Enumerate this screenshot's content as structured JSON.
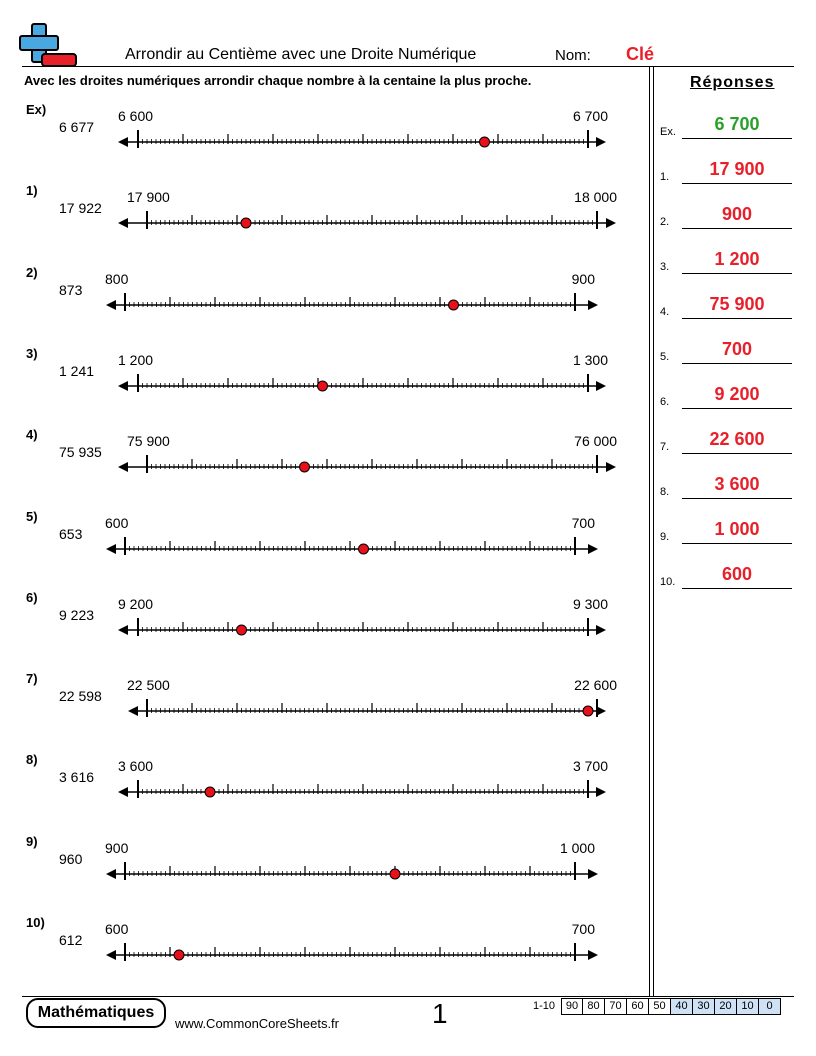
{
  "header": {
    "title": "Arrondir au Centième avec une Droite Numérique",
    "name_label": "Nom:",
    "name_value": "Clé",
    "instructions": "Avec les droites numériques arrondir chaque nombre à la centaine la plus proche."
  },
  "answers": {
    "title": "Réponses",
    "items": [
      {
        "label": "Ex.",
        "value": "6 700"
      },
      {
        "label": "1.",
        "value": "17 900"
      },
      {
        "label": "2.",
        "value": "900"
      },
      {
        "label": "3.",
        "value": "1 200"
      },
      {
        "label": "4.",
        "value": "75 900"
      },
      {
        "label": "5.",
        "value": "700"
      },
      {
        "label": "6.",
        "value": "9 200"
      },
      {
        "label": "7.",
        "value": "22 600"
      },
      {
        "label": "8.",
        "value": "3 600"
      },
      {
        "label": "9.",
        "value": "1 000"
      },
      {
        "label": "10.",
        "value": "600"
      }
    ],
    "colors": {
      "example": "#2aa02a",
      "answer": "#e8202a"
    }
  },
  "problems": [
    {
      "label": "Ex)",
      "number": "6 677",
      "start": "6 600",
      "end": "6 700",
      "fraction": 0.77
    },
    {
      "label": "1)",
      "number": "17 922",
      "start": "17 900",
      "end": "18 000",
      "fraction": 0.22
    },
    {
      "label": "2)",
      "number": "873",
      "start": "800",
      "end": "900",
      "fraction": 0.73
    },
    {
      "label": "3)",
      "number": "1 241",
      "start": "1 200",
      "end": "1 300",
      "fraction": 0.41
    },
    {
      "label": "4)",
      "number": "75 935",
      "start": "75 900",
      "end": "76 000",
      "fraction": 0.35
    },
    {
      "label": "5)",
      "number": "653",
      "start": "600",
      "end": "700",
      "fraction": 0.53
    },
    {
      "label": "6)",
      "number": "9 223",
      "start": "9 200",
      "end": "9 300",
      "fraction": 0.23
    },
    {
      "label": "7)",
      "number": "22 598",
      "start": "22 500",
      "end": "22 600",
      "fraction": 0.98
    },
    {
      "label": "8)",
      "number": "3 616",
      "start": "3 600",
      "end": "3 700",
      "fraction": 0.16
    },
    {
      "label": "9)",
      "number": "960",
      "start": "900",
      "end": "1 000",
      "fraction": 0.6
    },
    {
      "label": "10)",
      "number": "612",
      "start": "600",
      "end": "700",
      "fraction": 0.12
    }
  ],
  "footer": {
    "badge": "Mathématiques",
    "site": "www.CommonCoreSheets.fr",
    "page": "1",
    "score_label": "1-10",
    "scores": [
      "90",
      "80",
      "70",
      "60",
      "50",
      "40",
      "30",
      "20",
      "10",
      "0"
    ]
  },
  "icons": {
    "logo": "plus-minus-logo-icon",
    "point": "red-dot-icon"
  }
}
